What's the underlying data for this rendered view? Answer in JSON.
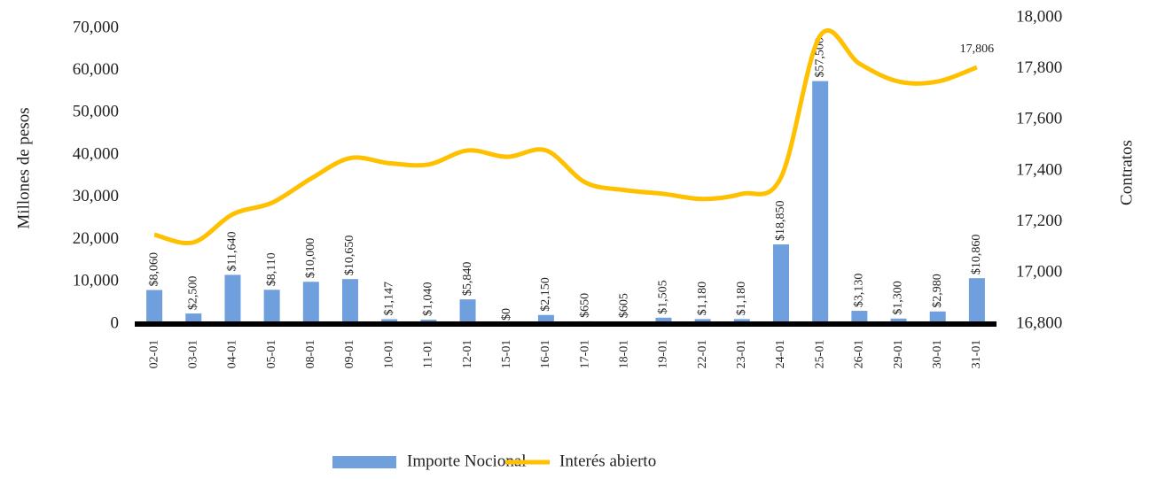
{
  "chart_data": {
    "type": "bar-line",
    "categories": [
      "02-01",
      "03-01",
      "04-01",
      "05-01",
      "08-01",
      "09-01",
      "10-01",
      "11-01",
      "12-01",
      "15-01",
      "16-01",
      "17-01",
      "18-01",
      "19-01",
      "22-01",
      "23-01",
      "24-01",
      "25-01",
      "26-01",
      "29-01",
      "30-01",
      "31-01"
    ],
    "series": [
      {
        "name": "Importe Nocional",
        "type": "bar",
        "color": "#6f9fdc",
        "values": [
          8060,
          2500,
          11640,
          8110,
          10000,
          10650,
          1147,
          1040,
          5840,
          0,
          2150,
          650,
          605,
          1505,
          1180,
          1180,
          18850,
          57500,
          3130,
          1300,
          2980,
          10860
        ],
        "value_labels": [
          "$8,060",
          "$2,500",
          "$11,640",
          "$8,110",
          "$10,000",
          "$10,650",
          "$1,147",
          "$1,040",
          "$5,840",
          "$0",
          "$2,150",
          "$650",
          "$605",
          "$1,505",
          "$1,180",
          "$1,180",
          "$18,850",
          "$57,500",
          "$3,130",
          "$1,300",
          "$2,980",
          "$10,860"
        ]
      },
      {
        "name": "Interés abierto",
        "type": "line",
        "axis": "y2",
        "color": "#ffc000",
        "values": [
          17150,
          17120,
          17230,
          17275,
          17370,
          17450,
          17430,
          17425,
          17480,
          17455,
          17480,
          17355,
          17325,
          17310,
          17290,
          17310,
          17375,
          17930,
          17820,
          17750,
          17750,
          17806
        ],
        "value_labels": [
          null,
          null,
          null,
          null,
          null,
          null,
          null,
          null,
          null,
          null,
          null,
          null,
          null,
          null,
          null,
          null,
          null,
          null,
          null,
          null,
          null,
          "17,806"
        ]
      }
    ],
    "ylabel": "Millones de pesos",
    "y2label": "Contratos",
    "ylim": [
      0,
      72500
    ],
    "yticks": [
      0,
      {
        "value": 10000,
        "label": "10,000"
      },
      {
        "value": 20000,
        "label": "20,000"
      },
      {
        "value": 30000,
        "label": "30,000"
      },
      {
        "value": 40000,
        "label": "40,000"
      },
      {
        "value": 50000,
        "label": "50,000"
      },
      {
        "value": 60000,
        "label": "60,000"
      },
      {
        "value": 70000,
        "label": "70,000"
      }
    ],
    "y2lim": [
      16800,
      18000
    ],
    "y2ticks": [
      {
        "value": 16800,
        "label": "16,800"
      },
      {
        "value": 17000,
        "label": "17,000"
      },
      {
        "value": 17200,
        "label": "17,200"
      },
      {
        "value": 17400,
        "label": "17,400"
      },
      {
        "value": 17600,
        "label": "17,600"
      },
      {
        "value": 17800,
        "label": "17,800"
      },
      {
        "value": 18000,
        "label": "18,000"
      }
    ],
    "legend": "bottom"
  }
}
